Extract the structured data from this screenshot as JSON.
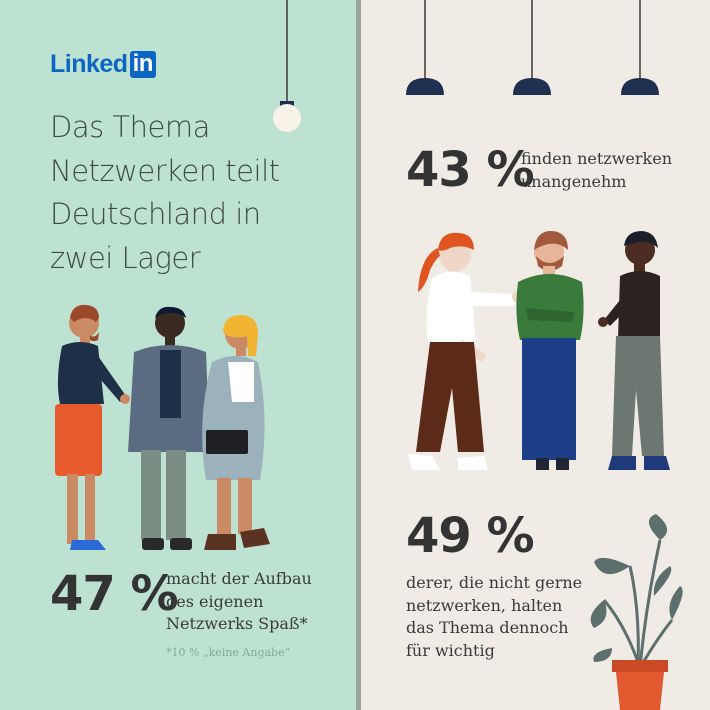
{
  "logo": {
    "text_part": "Linked",
    "box_part": "in"
  },
  "headline": [
    "Das Thema",
    "Netzwerken teilt",
    "Deutschland in",
    "zwei Lager"
  ],
  "stat_left": {
    "value": "47 %",
    "caption": [
      "macht der Aufbau",
      "des eigenen",
      "Netzwerks Spaß*"
    ],
    "footnote": "*10 % „keine Angabe“"
  },
  "stat_top_right": {
    "value": "43 %",
    "caption": [
      "finden netzwerken",
      "unangenehm"
    ]
  },
  "stat_bottom_right": {
    "value": "49 %",
    "caption": [
      "derer, die nicht gerne",
      "netzwerken, halten",
      "das Thema dennoch",
      "für wichtig"
    ]
  },
  "colors": {
    "left_bg": "#bde2d2",
    "right_bg": "#f0ebe5",
    "divider": "#9aa5a0",
    "linkedin_blue": "#0a66c2",
    "lamp_navy": "#1f3050",
    "pot_orange": "#e2592f"
  },
  "illustrations": [
    "pendant-lamp-globe",
    "pendant-lamp-shade",
    "people-group-left",
    "people-group-right",
    "potted-plant"
  ]
}
